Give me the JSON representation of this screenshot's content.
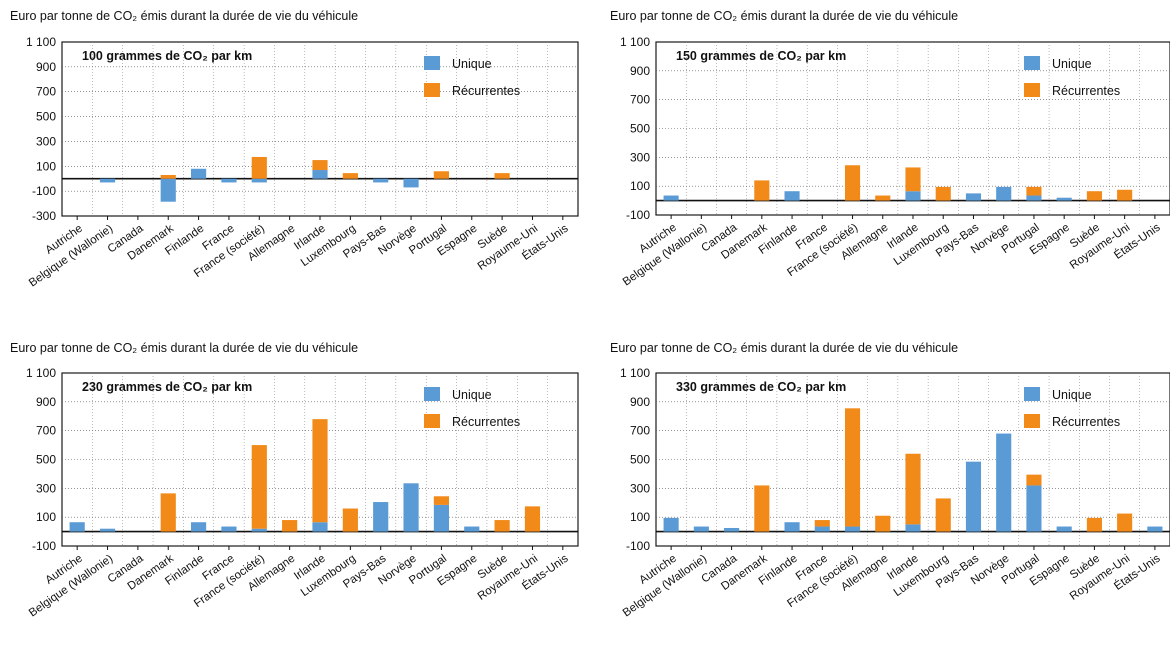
{
  "chart_data": [
    {
      "type": "bar",
      "stacked": true,
      "ylabel": "Euro par tonne de CO₂ émis durant la durée de vie du véhicule",
      "title": "100 grammes de CO₂ par km",
      "categories": [
        "Autriche",
        "Belgique (Wallonie)",
        "Canada",
        "Danemark",
        "Finlande",
        "France",
        "France (société)",
        "Allemagne",
        "Irlande",
        "Luxembourg",
        "Pays-Bas",
        "Norvège",
        "Portugal",
        "Espagne",
        "Suède",
        "Royaume-Uni",
        "États-Unis"
      ],
      "series": [
        {
          "name": "Unique",
          "values": [
            0,
            -30,
            0,
            -185,
            80,
            -30,
            -30,
            0,
            70,
            0,
            -30,
            -70,
            0,
            0,
            0,
            0,
            0
          ]
        },
        {
          "name": "Récurrentes",
          "values": [
            0,
            0,
            0,
            30,
            0,
            0,
            175,
            0,
            80,
            45,
            0,
            0,
            60,
            0,
            45,
            0,
            0
          ]
        }
      ],
      "ylim": [
        -300,
        1100
      ],
      "yticks": [
        "1 100",
        "900",
        "700",
        "500",
        "300",
        "100",
        "-100",
        "-300"
      ],
      "legend_position": "top-right"
    },
    {
      "type": "bar",
      "stacked": true,
      "ylabel": "Euro par tonne de CO₂ émis durant la durée de vie du véhicule",
      "title": "150 grammes de CO₂ par km",
      "categories": [
        "Autriche",
        "Belgique (Wallonie)",
        "Canada",
        "Danemark",
        "Finlande",
        "France",
        "France (société)",
        "Allemagne",
        "Irlande",
        "Luxembourg",
        "Pays-Bas",
        "Norvège",
        "Portugal",
        "Espagne",
        "Suède",
        "Royaume-Uni",
        "États-Unis"
      ],
      "series": [
        {
          "name": "Unique",
          "values": [
            35,
            0,
            0,
            0,
            65,
            0,
            0,
            0,
            65,
            0,
            50,
            95,
            35,
            20,
            0,
            0,
            0
          ]
        },
        {
          "name": "Récurrentes",
          "values": [
            0,
            0,
            0,
            140,
            0,
            0,
            245,
            35,
            165,
            95,
            0,
            0,
            60,
            0,
            65,
            75,
            0
          ]
        }
      ],
      "ylim": [
        -100,
        1100
      ],
      "yticks": [
        "1 100",
        "900",
        "700",
        "500",
        "300",
        "100",
        "-100"
      ],
      "legend_position": "top-right"
    },
    {
      "type": "bar",
      "stacked": true,
      "ylabel": "Euro par tonne de CO₂ émis durant la durée de vie du véhicule",
      "title": "230 grammes de CO₂ par km",
      "categories": [
        "Autriche",
        "Belgique (Wallonie)",
        "Canada",
        "Danemark",
        "Finlande",
        "France",
        "France (société)",
        "Allemagne",
        "Irlande",
        "Luxembourg",
        "Pays-Bas",
        "Norvège",
        "Portugal",
        "Espagne",
        "Suède",
        "Royaume-Uni",
        "États-Unis"
      ],
      "series": [
        {
          "name": "Unique",
          "values": [
            65,
            20,
            0,
            0,
            65,
            35,
            20,
            0,
            65,
            0,
            205,
            335,
            185,
            35,
            0,
            0,
            0
          ]
        },
        {
          "name": "Récurrentes",
          "values": [
            0,
            0,
            0,
            265,
            0,
            0,
            580,
            80,
            715,
            160,
            0,
            0,
            60,
            0,
            80,
            175,
            0
          ]
        }
      ],
      "ylim": [
        -100,
        1100
      ],
      "yticks": [
        "1 100",
        "900",
        "700",
        "500",
        "300",
        "100",
        "-100"
      ],
      "legend_position": "top-right"
    },
    {
      "type": "bar",
      "stacked": true,
      "ylabel": "Euro par tonne de CO₂ émis durant la durée de vie du véhicule",
      "title": "330 grammes de CO₂ par km",
      "categories": [
        "Autriche",
        "Belgique (Wallonie)",
        "Canada",
        "Danemark",
        "Finlande",
        "France",
        "France (société)",
        "Allemagne",
        "Irlande",
        "Luxembourg",
        "Pays-Bas",
        "Norvège",
        "Portugal",
        "Espagne",
        "Suède",
        "Royaume-Uni",
        "États-Unis"
      ],
      "series": [
        {
          "name": "Unique",
          "values": [
            95,
            35,
            25,
            0,
            65,
            35,
            35,
            0,
            50,
            0,
            485,
            680,
            320,
            35,
            0,
            0,
            35
          ]
        },
        {
          "name": "Récurrentes",
          "values": [
            0,
            0,
            0,
            320,
            0,
            45,
            820,
            110,
            490,
            230,
            0,
            0,
            75,
            0,
            95,
            125,
            0
          ]
        }
      ],
      "ylim": [
        -100,
        1100
      ],
      "yticks": [
        "1 100",
        "900",
        "700",
        "500",
        "300",
        "100",
        "-100"
      ],
      "legend_position": "top-right"
    }
  ],
  "colors": {
    "unique": "#5b9bd5",
    "recurrentes": "#f28a1a",
    "plot_bg": "#ffffff",
    "grid": "#3c3c3c"
  }
}
